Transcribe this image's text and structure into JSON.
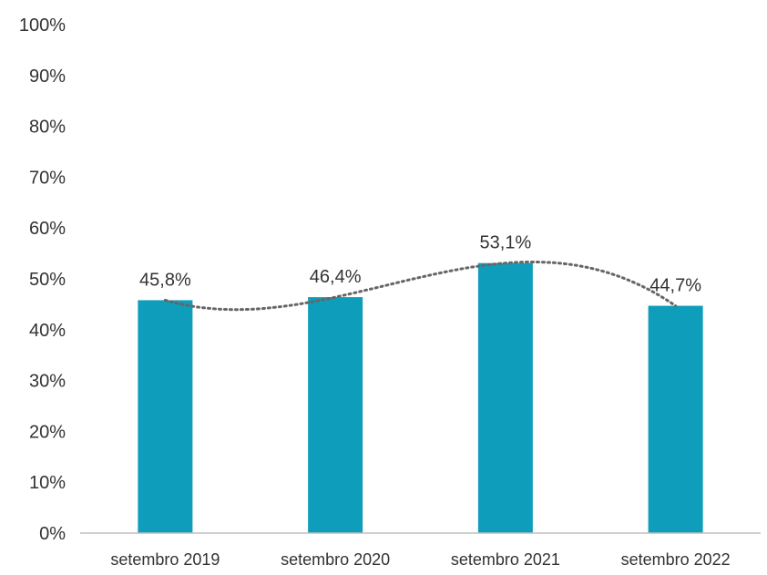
{
  "chart_data": {
    "type": "bar",
    "categories": [
      "setembro  2019",
      "setembro  2020",
      "setembro  2021",
      "setembro  2022"
    ],
    "values": [
      45.8,
      46.4,
      53.1,
      44.7
    ],
    "data_labels": [
      "45,8%",
      "46,4%",
      "53,1%",
      "44,7%"
    ],
    "y_ticks": [
      "0%",
      "10%",
      "20%",
      "30%",
      "40%",
      "50%",
      "60%",
      "70%",
      "80%",
      "90%",
      "100%"
    ],
    "ylim": [
      0,
      100
    ],
    "y_unit": "%",
    "grid": false,
    "trendline": {
      "type": "polynomial",
      "style": "dotted"
    },
    "title": "",
    "xlabel": "",
    "ylabel": "",
    "colors": {
      "bar": "#0e9dba",
      "trendline": "#666666",
      "axis": "#bfbfbf"
    }
  }
}
